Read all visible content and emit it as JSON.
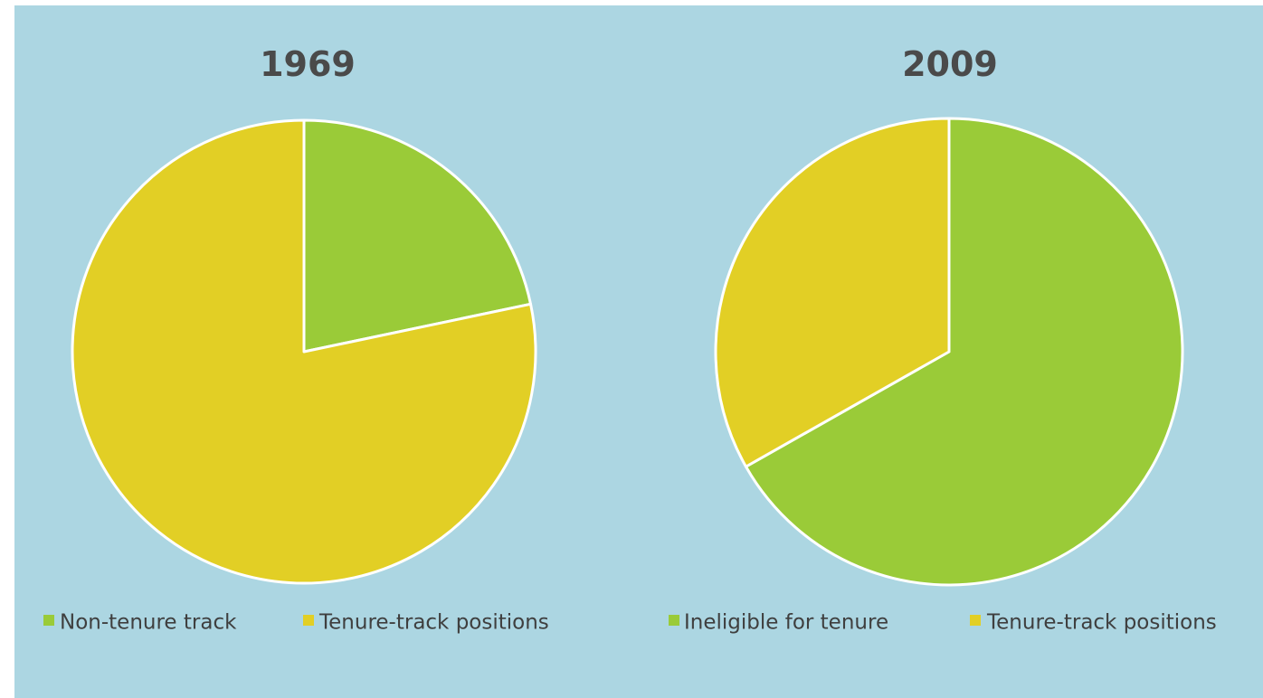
{
  "chart_data": [
    {
      "type": "pie",
      "title": "1969",
      "slices": [
        {
          "label": "Non-tenure track",
          "value": 21.7,
          "color": "#9acb38"
        },
        {
          "label": "Tenure-track positions",
          "value": 78.3,
          "color": "#e2cf25"
        }
      ],
      "start_angle_deg": 0,
      "direction": "clockwise",
      "legend_position": "bottom"
    },
    {
      "type": "pie",
      "title": "2009",
      "slices": [
        {
          "label": "Ineligible for tenure",
          "value": 66.8,
          "color": "#9acb38"
        },
        {
          "label": "Tenure-track positions",
          "value": 33.2,
          "color": "#e2cf25"
        }
      ],
      "start_angle_deg": 0,
      "direction": "clockwise",
      "legend_position": "bottom"
    }
  ],
  "colors": {
    "background": "#acd6e2",
    "slice_border": "#ffffff",
    "title_text": "#4a4a4a",
    "legend_text": "#3f3f3f"
  }
}
